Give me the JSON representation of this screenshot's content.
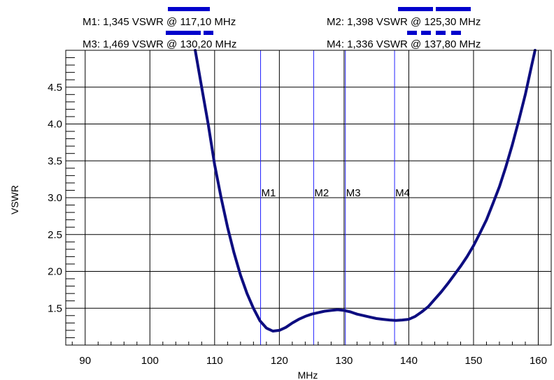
{
  "markers_panel": [
    {
      "text": "M1: 1,345 VSWR @ 117,10 MHz",
      "freq": 117.1,
      "vswr": 1.345,
      "label": "M1",
      "dash": "solid"
    },
    {
      "text": "M2: 1,398 VSWR @ 125,30 MHz",
      "freq": 125.3,
      "vswr": 1.398,
      "label": "M2",
      "dash": "long"
    },
    {
      "text": "M3: 1,469 VSWR @ 130,20 MHz",
      "freq": 130.2,
      "vswr": 1.469,
      "label": "M3",
      "dash": "mixed"
    },
    {
      "text": "M4: 1,336 VSWR @ 137,80 MHz",
      "freq": 137.8,
      "vswr": 1.336,
      "label": "M4",
      "dash": "short"
    }
  ],
  "colors": {
    "curve": "#0d0d80",
    "marker_line": "#2222ff",
    "marker_swatch": "#0000cc",
    "grid": "#000000"
  },
  "chart_data": {
    "type": "line",
    "xlabel": "MHz",
    "ylabel": "VSWR",
    "xlim": [
      87,
      162
    ],
    "ylim": [
      1.0,
      5.0
    ],
    "x_ticks": [
      "90",
      "100",
      "110",
      "120",
      "130",
      "140",
      "150",
      "160"
    ],
    "x_tick_values": [
      90,
      100,
      110,
      120,
      130,
      140,
      150,
      160
    ],
    "y_ticks": [
      "1.5",
      "2.0",
      "2.5",
      "3.0",
      "3.5",
      "4.0",
      "4.5"
    ],
    "y_tick_values": [
      1.5,
      2.0,
      2.5,
      3.0,
      3.5,
      4.0,
      4.5
    ],
    "grid": true,
    "series": [
      {
        "x": [
          107.0,
          108.0,
          109.0,
          110.0,
          111.0,
          112.0,
          113.0,
          114.0,
          115.0,
          116.0,
          117.0,
          118.0,
          119.0,
          120.0,
          121.0,
          122.0,
          123.0,
          124.0,
          125.0,
          126.0,
          127.0,
          128.0,
          129.0,
          130.0,
          131.0,
          132.0,
          133.0,
          134.0,
          135.0,
          136.0,
          137.0,
          138.0,
          139.0,
          140.0,
          141.0,
          142.0,
          143.0,
          144.0,
          145.0,
          146.0,
          147.0,
          148.0,
          149.0,
          150.0,
          151.0,
          152.0,
          153.0,
          154.0,
          155.0,
          156.0,
          157.0,
          158.0,
          159.0,
          159.5
        ],
        "y": [
          5.0,
          4.5,
          4.0,
          3.45,
          3.0,
          2.6,
          2.25,
          1.95,
          1.7,
          1.5,
          1.33,
          1.23,
          1.19,
          1.2,
          1.24,
          1.3,
          1.35,
          1.39,
          1.42,
          1.44,
          1.46,
          1.47,
          1.48,
          1.47,
          1.45,
          1.42,
          1.4,
          1.38,
          1.36,
          1.35,
          1.34,
          1.335,
          1.34,
          1.35,
          1.39,
          1.45,
          1.52,
          1.62,
          1.72,
          1.83,
          1.95,
          2.07,
          2.2,
          2.35,
          2.52,
          2.7,
          2.92,
          3.15,
          3.42,
          3.72,
          4.05,
          4.4,
          4.8,
          5.0
        ]
      }
    ]
  }
}
